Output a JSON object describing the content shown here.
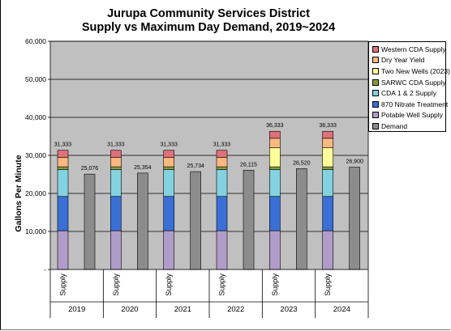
{
  "chart_data": {
    "type": "bar",
    "title_line1": "Jurupa Community Services District",
    "title_line2": "Supply vs Maximum Day Demand, 2019~2024",
    "ylabel": "Gallons Per Minute",
    "ylim": [
      0,
      60000
    ],
    "yticks": [
      0,
      10000,
      20000,
      30000,
      40000,
      50000,
      60000
    ],
    "ytick_labels": [
      "-",
      "10,000",
      "20,000",
      "30,000",
      "40,000",
      "50,000",
      "60,000"
    ],
    "grid": true,
    "legend_position": "right",
    "years": [
      "2019",
      "2020",
      "2021",
      "2022",
      "2023",
      "2024"
    ],
    "supply_bar_label": "Supply",
    "supply_series": [
      {
        "name": "Potable Well Supply",
        "color": "#b09cc8",
        "values": [
          10200,
          10200,
          10200,
          10200,
          10200,
          10200
        ]
      },
      {
        "name": "870 Nitrate Treatment",
        "color": "#3a6fd6",
        "values": [
          9000,
          9000,
          9000,
          9000,
          9000,
          9000
        ]
      },
      {
        "name": "CDA 1 & 2 Supply",
        "color": "#83d2e0",
        "values": [
          7100,
          7100,
          7100,
          7100,
          7100,
          7100
        ]
      },
      {
        "name": "SARWC CDA Supply",
        "color": "#8a9a3c",
        "values": [
          700,
          700,
          700,
          700,
          700,
          700
        ]
      },
      {
        "name": "Two New Wells (2023)",
        "color": "#ffff99",
        "values": [
          0,
          0,
          0,
          0,
          5000,
          5000
        ]
      },
      {
        "name": "Dry Year Yield",
        "color": "#f8b880",
        "values": [
          2500,
          2500,
          2500,
          2500,
          2500,
          2500
        ]
      },
      {
        "name": "Western CDA Supply",
        "color": "#e0707a",
        "values": [
          1833,
          1833,
          1833,
          1833,
          1833,
          1833
        ]
      }
    ],
    "supply_totals": [
      31333,
      31333,
      31333,
      31333,
      36333,
      36333
    ],
    "supply_total_labels": [
      "31,333",
      "31,333",
      "31,333",
      "31,333",
      "36,333",
      "36,333"
    ],
    "demand_series": {
      "name": "Demand",
      "color": "#8c8c8c",
      "values": [
        25076,
        25354,
        25734,
        26115,
        26520,
        26900
      ]
    },
    "demand_labels": [
      "25,076",
      "25,354",
      "25,734",
      "26,115",
      "26,520",
      "26,900"
    ],
    "legend_entries": [
      {
        "name": "Western CDA Supply",
        "color": "#e0707a"
      },
      {
        "name": "Dry Year Yield",
        "color": "#f8b880"
      },
      {
        "name": "Two New Wells (2023)",
        "color": "#ffff99"
      },
      {
        "name": "SARWC CDA Supply",
        "color": "#8a9a3c"
      },
      {
        "name": "CDA 1 & 2 Supply",
        "color": "#83d2e0"
      },
      {
        "name": "870 Nitrate Treatment",
        "color": "#3a6fd6"
      },
      {
        "name": "Potable Well Supply",
        "color": "#b09cc8"
      },
      {
        "name": "Demand",
        "color": "#8c8c8c"
      }
    ],
    "plot_background": "#c0c0c0"
  }
}
